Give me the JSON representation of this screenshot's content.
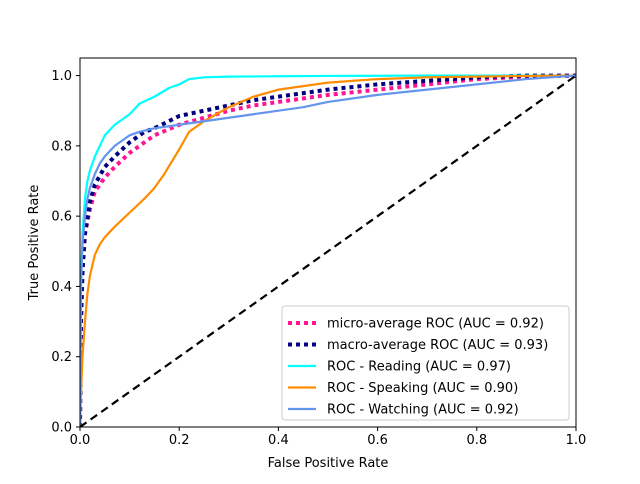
{
  "chart_data": {
    "type": "line",
    "title": "",
    "xlabel": "False Positive Rate",
    "ylabel": "True Positive Rate",
    "xlim": [
      0.0,
      1.0
    ],
    "ylim": [
      0.0,
      1.05
    ],
    "xticks": [
      0.0,
      0.2,
      0.4,
      0.6,
      0.8,
      1.0
    ],
    "yticks": [
      0.0,
      0.2,
      0.4,
      0.6,
      0.8,
      1.0
    ],
    "xtick_labels": [
      "0.0",
      "0.2",
      "0.4",
      "0.6",
      "0.8",
      "1.0"
    ],
    "ytick_labels": [
      "0.0",
      "0.2",
      "0.4",
      "0.6",
      "0.8",
      "1.0"
    ],
    "grid": false,
    "legend_position": "lower-right",
    "series": [
      {
        "name": "micro-average ROC (AUC = 0.92)",
        "color": "#ff1493",
        "style": "dotted",
        "x": [
          0.0,
          0.002,
          0.005,
          0.01,
          0.02,
          0.03,
          0.05,
          0.07,
          0.1,
          0.13,
          0.15,
          0.2,
          0.25,
          0.3,
          0.35,
          0.4,
          0.5,
          0.6,
          0.7,
          0.8,
          0.9,
          1.0
        ],
        "y": [
          0.0,
          0.3,
          0.45,
          0.55,
          0.62,
          0.67,
          0.71,
          0.74,
          0.78,
          0.81,
          0.83,
          0.86,
          0.88,
          0.9,
          0.915,
          0.925,
          0.945,
          0.96,
          0.975,
          0.99,
          0.997,
          1.0
        ]
      },
      {
        "name": "macro-average ROC (AUC = 0.93)",
        "color": "#000080",
        "style": "dotted",
        "x": [
          0.0,
          0.002,
          0.005,
          0.01,
          0.02,
          0.03,
          0.05,
          0.07,
          0.1,
          0.13,
          0.15,
          0.2,
          0.25,
          0.3,
          0.35,
          0.4,
          0.5,
          0.6,
          0.7,
          0.8,
          0.9,
          1.0
        ],
        "y": [
          0.0,
          0.3,
          0.44,
          0.55,
          0.64,
          0.69,
          0.74,
          0.77,
          0.81,
          0.84,
          0.85,
          0.885,
          0.9,
          0.915,
          0.93,
          0.94,
          0.96,
          0.975,
          0.985,
          0.995,
          1.0,
          1.0
        ]
      },
      {
        "name": "ROC - Reading (AUC = 0.97)",
        "color": "#00ffff",
        "style": "solid",
        "x": [
          0.0,
          0.002,
          0.005,
          0.01,
          0.015,
          0.02,
          0.03,
          0.04,
          0.05,
          0.07,
          0.09,
          0.1,
          0.12,
          0.15,
          0.18,
          0.2,
          0.22,
          0.25,
          0.3,
          0.4,
          0.5,
          0.7,
          1.0
        ],
        "y": [
          0.0,
          0.4,
          0.55,
          0.65,
          0.7,
          0.73,
          0.77,
          0.8,
          0.83,
          0.86,
          0.88,
          0.89,
          0.92,
          0.94,
          0.965,
          0.975,
          0.99,
          0.995,
          0.997,
          0.998,
          0.999,
          1.0,
          1.0
        ]
      },
      {
        "name": "ROC - Speaking (AUC = 0.90)",
        "color": "#ff8c00",
        "style": "solid",
        "x": [
          0.0,
          0.002,
          0.005,
          0.01,
          0.015,
          0.02,
          0.03,
          0.04,
          0.05,
          0.07,
          0.1,
          0.13,
          0.15,
          0.17,
          0.2,
          0.22,
          0.25,
          0.3,
          0.35,
          0.4,
          0.45,
          0.5,
          0.6,
          0.7,
          0.8,
          0.9,
          1.0
        ],
        "y": [
          0.0,
          0.1,
          0.2,
          0.3,
          0.38,
          0.43,
          0.49,
          0.52,
          0.54,
          0.57,
          0.61,
          0.65,
          0.68,
          0.72,
          0.79,
          0.84,
          0.87,
          0.91,
          0.94,
          0.96,
          0.97,
          0.98,
          0.99,
          0.995,
          0.997,
          0.999,
          1.0
        ]
      },
      {
        "name": "ROC - Watching (AUC = 0.92)",
        "color": "#6495ed",
        "style": "solid",
        "x": [
          0.0,
          0.002,
          0.005,
          0.01,
          0.015,
          0.02,
          0.03,
          0.04,
          0.05,
          0.07,
          0.1,
          0.12,
          0.15,
          0.2,
          0.25,
          0.3,
          0.35,
          0.4,
          0.45,
          0.5,
          0.6,
          0.7,
          0.8,
          0.9,
          1.0
        ],
        "y": [
          0.0,
          0.4,
          0.52,
          0.6,
          0.65,
          0.68,
          0.72,
          0.75,
          0.77,
          0.8,
          0.83,
          0.84,
          0.85,
          0.86,
          0.87,
          0.88,
          0.89,
          0.9,
          0.91,
          0.925,
          0.945,
          0.96,
          0.975,
          0.99,
          1.0
        ]
      },
      {
        "name": "",
        "color": "#000000",
        "style": "dashed",
        "x": [
          0.0,
          1.0
        ],
        "y": [
          0.0,
          1.0
        ]
      }
    ]
  }
}
